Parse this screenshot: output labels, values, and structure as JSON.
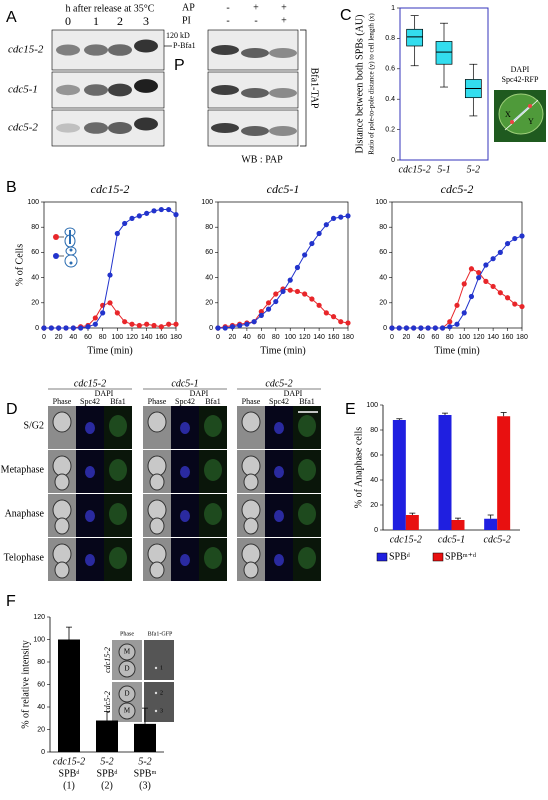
{
  "panel_a": {
    "label": "A",
    "time_header": "h after release at 35°C",
    "lanes": [
      "0",
      "1",
      "2",
      "3"
    ],
    "marker": "120 kD",
    "band": "P-Bfa1",
    "p_label": "P",
    "strains": [
      "cdc15-2",
      "cdc5-1",
      "cdc5-2"
    ],
    "treatments": [
      {
        "name": "AP",
        "signs": [
          "-",
          "+",
          "+"
        ]
      },
      {
        "name": "PI",
        "signs": [
          "-",
          "-",
          "+"
        ]
      }
    ],
    "side_label": "Bfa1-TAP",
    "wb": "WB : PAP"
  },
  "panel_b": {
    "label": "B"
  },
  "panel_c": {
    "label": "C",
    "image_labels": [
      "DAPI",
      "Spc42-RFP"
    ],
    "image_axes": [
      "X",
      "Y"
    ]
  },
  "panel_d": {
    "label": "D",
    "groups": [
      {
        "strain": "cdc15-2",
        "headers": [
          "Phase",
          "DAPI",
          "Spc42",
          "Bfa1"
        ]
      },
      {
        "strain": "cdc5-1",
        "headers": [
          "Phase",
          "DAPI",
          "Spc42",
          "Bfa1"
        ]
      },
      {
        "strain": "cdc5-2",
        "headers": [
          "Phase",
          "DAPI",
          "Spc42",
          "Bfa1"
        ]
      }
    ],
    "rows": [
      "S/G2",
      "Metaphase",
      "Anaphase",
      "Telophase"
    ]
  },
  "panel_e": {
    "label": "E"
  },
  "panel_f": {
    "label": "F",
    "inset_columns": [
      "Phase",
      "Bfa1-GFP"
    ],
    "inset_rows": [
      "cdc15-2",
      "cdc5-2"
    ],
    "cell_marks": [
      [
        "M",
        "D"
      ],
      [
        "D",
        "M"
      ]
    ],
    "spot_marks": [
      "1",
      "2",
      "3"
    ]
  },
  "chart_data": [
    {
      "type": "line",
      "title": "cdc15-2",
      "xlabel": "Time (min)",
      "ylabel": "% of Cells",
      "x": [
        0,
        10,
        20,
        30,
        40,
        50,
        60,
        70,
        80,
        90,
        100,
        110,
        120,
        130,
        140,
        150,
        160,
        170,
        180
      ],
      "series": [
        {
          "color": "#e8262a",
          "values": [
            0,
            0,
            0,
            0,
            0,
            1,
            2,
            8,
            18,
            20,
            12,
            5,
            3,
            2,
            3,
            2,
            1,
            3,
            3
          ]
        },
        {
          "color": "#2233cc",
          "values": [
            0,
            0,
            0,
            0,
            0,
            0,
            1,
            3,
            12,
            42,
            75,
            83,
            87,
            89,
            91,
            93,
            94,
            94,
            90
          ]
        }
      ],
      "xlim": [
        0,
        180
      ],
      "xticks": [
        0,
        20,
        40,
        60,
        80,
        100,
        120,
        140,
        160,
        180
      ],
      "ylim": [
        0,
        100
      ],
      "yticks": [
        0,
        20,
        40,
        60,
        80,
        100
      ]
    },
    {
      "type": "line",
      "title": "cdc5-1",
      "xlabel": "Time (min)",
      "x": [
        0,
        10,
        20,
        30,
        40,
        50,
        60,
        70,
        80,
        90,
        100,
        110,
        120,
        130,
        140,
        150,
        160,
        170,
        180
      ],
      "series": [
        {
          "color": "#e8262a",
          "values": [
            0,
            1,
            2,
            3,
            4,
            5,
            13,
            20,
            27,
            31,
            30,
            29,
            27,
            23,
            18,
            12,
            9,
            5,
            4
          ]
        },
        {
          "color": "#2233cc",
          "values": [
            0,
            0,
            1,
            2,
            3,
            5,
            10,
            15,
            21,
            29,
            38,
            48,
            58,
            67,
            75,
            82,
            87,
            88,
            89
          ]
        }
      ],
      "xlim": [
        0,
        180
      ],
      "xticks": [
        0,
        20,
        40,
        60,
        80,
        100,
        120,
        140,
        160,
        180
      ],
      "ylim": [
        0,
        100
      ],
      "yticks": [
        0,
        20,
        40,
        60,
        80,
        100
      ]
    },
    {
      "type": "line",
      "title": "cdc5-2",
      "xlabel": "Time (min)",
      "x": [
        0,
        10,
        20,
        30,
        40,
        50,
        60,
        70,
        80,
        90,
        100,
        110,
        120,
        130,
        140,
        150,
        160,
        170,
        180
      ],
      "series": [
        {
          "color": "#e8262a",
          "values": [
            0,
            0,
            0,
            0,
            0,
            0,
            0,
            0,
            5,
            18,
            35,
            47,
            44,
            37,
            33,
            28,
            24,
            19,
            17
          ]
        },
        {
          "color": "#2233cc",
          "values": [
            0,
            0,
            0,
            0,
            0,
            0,
            0,
            0,
            1,
            3,
            12,
            25,
            40,
            50,
            55,
            60,
            67,
            71,
            73
          ]
        }
      ],
      "xlim": [
        0,
        180
      ],
      "xticks": [
        0,
        20,
        40,
        60,
        80,
        100,
        120,
        140,
        160,
        180
      ],
      "ylim": [
        0,
        100
      ],
      "yticks": [
        0,
        20,
        40,
        60,
        80,
        100
      ]
    },
    {
      "type": "box",
      "ylabel": "Distance between both SPBs (AU)",
      "ylabel_note": "Ratio of pole-to-pole distance (y) to cell length (x)",
      "categories": [
        "cdc15-2",
        "5-1",
        "5-2"
      ],
      "color": "#33ddee",
      "boxes": [
        {
          "min": 0.62,
          "q1": 0.75,
          "median": 0.81,
          "q3": 0.86,
          "max": 0.95
        },
        {
          "min": 0.48,
          "q1": 0.63,
          "median": 0.71,
          "q3": 0.78,
          "max": 0.9
        },
        {
          "min": 0.29,
          "q1": 0.41,
          "median": 0.47,
          "q3": 0.53,
          "max": 0.63
        }
      ],
      "ylim": [
        0,
        1
      ],
      "yticks": [
        0,
        0.2,
        0.4,
        0.6,
        0.8,
        1
      ]
    },
    {
      "type": "bar",
      "ylabel": "% of Anaphase cells",
      "categories": [
        "cdc15-2",
        "cdc5-1",
        "cdc5-2"
      ],
      "series": [
        {
          "name": "SPBᵈ",
          "color": "#1f1fe0",
          "values": [
            88,
            92,
            9
          ],
          "errors": [
            1,
            1.5,
            3
          ]
        },
        {
          "name": "SPBᵐ⁺ᵈ",
          "color": "#e81010",
          "values": [
            12,
            8,
            91
          ],
          "errors": [
            1.5,
            1.5,
            3
          ]
        }
      ],
      "ylim": [
        0,
        100
      ],
      "yticks": [
        0,
        20,
        40,
        60,
        80,
        100
      ]
    },
    {
      "type": "bar",
      "ylabel": "% of relative intensity",
      "categories": [
        "cdc15-2",
        "5-2",
        "5-2"
      ],
      "sublabels": [
        "SPBᵈ",
        "SPBᵈ",
        "SPBᵐ"
      ],
      "indices": [
        "(1)",
        "(2)",
        "(3)"
      ],
      "series": [
        {
          "color": "#000000",
          "values": [
            100,
            28,
            25
          ],
          "errors": [
            11,
            8,
            14
          ]
        }
      ],
      "ylim": [
        0,
        120
      ],
      "yticks": [
        0,
        20,
        40,
        60,
        80,
        100,
        120
      ]
    }
  ]
}
